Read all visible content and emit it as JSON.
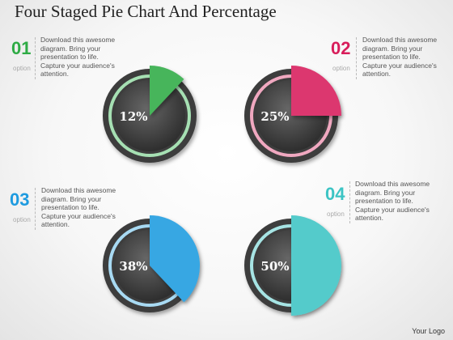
{
  "title": "Four Staged Pie Chart And Percentage",
  "logo_text": "Your Logo",
  "stages": [
    {
      "number": "01",
      "option": "option",
      "text": [
        "Download this awesome",
        "diagram. Bring your",
        "presentation to life.",
        "Capture your audience's",
        "attention."
      ],
      "percent_label": "12%",
      "value": 12,
      "color": "#2eab45",
      "ring_color": "#a6e0b3"
    },
    {
      "number": "02",
      "option": "option",
      "text": [
        "Download this awesome",
        "diagram. Bring your",
        "presentation to life.",
        "Capture your audience's",
        "attention."
      ],
      "percent_label": "25%",
      "value": 25,
      "color": "#d81e5b",
      "ring_color": "#f0a8c0"
    },
    {
      "number": "03",
      "option": "option",
      "text": [
        "Download this awesome",
        "diagram. Bring your",
        "presentation to life.",
        "Capture your audience's",
        "attention."
      ],
      "percent_label": "38%",
      "value": 38,
      "color": "#1e9be0",
      "ring_color": "#a8daf3"
    },
    {
      "number": "04",
      "option": "option",
      "text": [
        "Download this awesome",
        "diagram. Bring your",
        "presentation to life.",
        "Capture your audience's",
        "attention."
      ],
      "percent_label": "50%",
      "value": 50,
      "color": "#3cc4c4",
      "ring_color": "#a6e4e4"
    }
  ]
}
